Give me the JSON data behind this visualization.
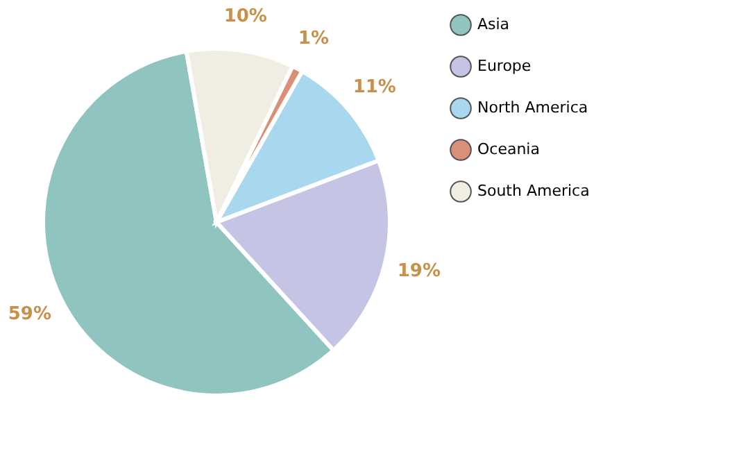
{
  "chart_data": {
    "type": "pie",
    "categories": [
      "Asia",
      "Europe",
      "North America",
      "Oceania",
      "South America"
    ],
    "values": [
      59,
      19,
      11,
      1,
      10
    ],
    "value_labels": [
      "59%",
      "19%",
      "11%",
      "1%",
      "10%"
    ],
    "colors": [
      "#8fc4c0",
      "#c4c4e4",
      "#a8d8ee",
      "#d98f78",
      "#f0ede2"
    ],
    "legend": "right"
  }
}
